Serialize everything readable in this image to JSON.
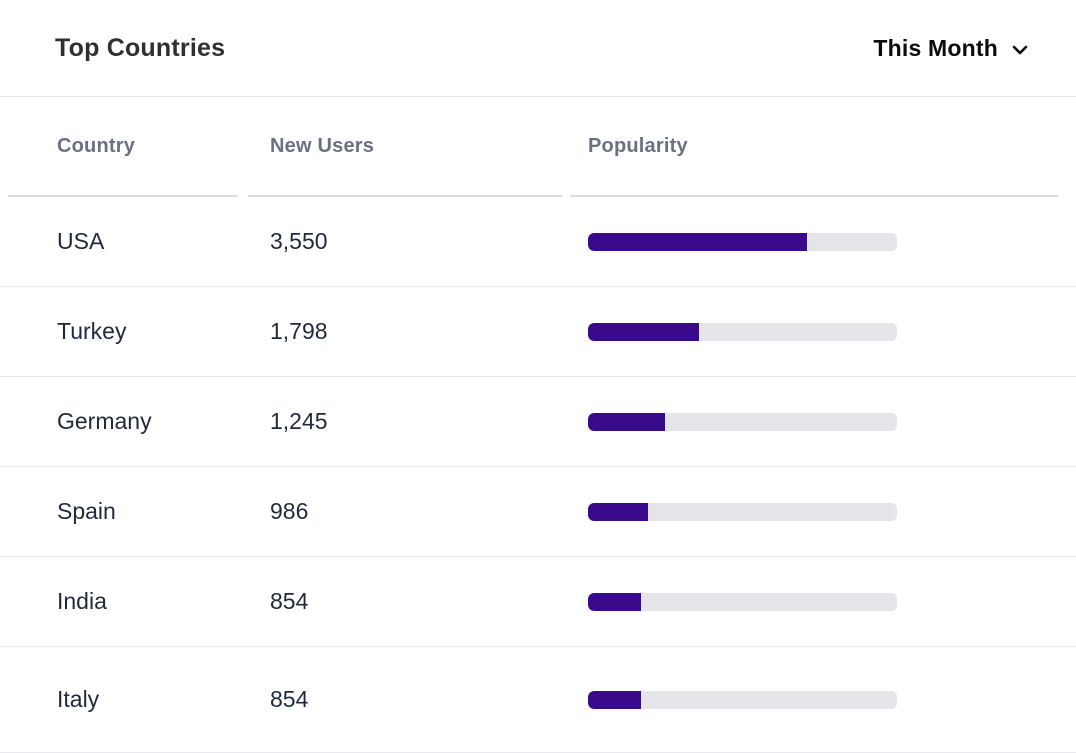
{
  "widget": {
    "title": "Top Countries",
    "period_selector": {
      "label": "This Month",
      "icon": "chevron-down-icon"
    }
  },
  "table": {
    "columns": {
      "country": "Country",
      "new_users": "New Users",
      "popularity": "Popularity"
    },
    "rows": [
      {
        "country": "USA",
        "new_users": "3,550",
        "popularity_pct": 71
      },
      {
        "country": "Turkey",
        "new_users": "1,798",
        "popularity_pct": 36
      },
      {
        "country": "Germany",
        "new_users": "1,245",
        "popularity_pct": 24.8
      },
      {
        "country": "Spain",
        "new_users": "986",
        "popularity_pct": 19.5
      },
      {
        "country": "India",
        "new_users": "854",
        "popularity_pct": 17
      },
      {
        "country": "Italy",
        "new_users": "854",
        "popularity_pct": 17
      }
    ]
  },
  "chart_data": {
    "type": "table",
    "title": "Top Countries",
    "categories": [
      "USA",
      "Turkey",
      "Germany",
      "Spain",
      "India",
      "Italy"
    ],
    "series": [
      {
        "name": "New Users",
        "values": [
          3550,
          1798,
          1245,
          986,
          854,
          854
        ]
      },
      {
        "name": "Popularity (%)",
        "values": [
          71,
          36,
          24.8,
          19.5,
          17,
          17
        ]
      }
    ],
    "legend_position": "none",
    "grid": false
  },
  "colors": {
    "bar_fill": "#3a0a8c",
    "bar_track": "#e4e4e9",
    "title_color": "#2e2f33",
    "period_color": "#0b0c0f",
    "header_color": "#6a7183",
    "body_color": "#1f2a3c",
    "separator": "#e7e8ec",
    "header_border": "#dcdde2",
    "row_border": "#e9eaee"
  }
}
